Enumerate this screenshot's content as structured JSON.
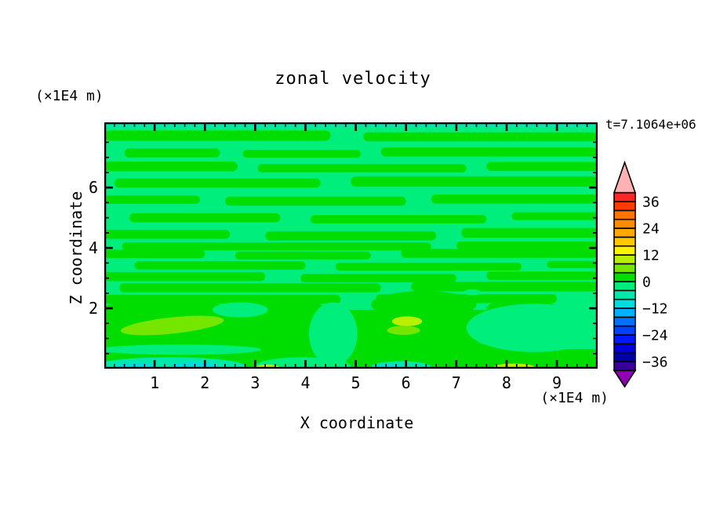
{
  "chart_data": {
    "type": "heatmap",
    "subtype": "filled-contour",
    "title": "zonal velocity",
    "annotation": "t=7.1064e+06",
    "xlabel": "X coordinate",
    "ylabel": "Z coordinate",
    "x_unit": "(×1E4 m)",
    "y_unit": "(×1E4 m)",
    "xlim": [
      0,
      9.81
    ],
    "ylim": [
      0,
      8.16
    ],
    "grid": false,
    "x_major_ticks": [
      {
        "v": 1,
        "label": "1"
      },
      {
        "v": 2,
        "label": "2"
      },
      {
        "v": 3,
        "label": "3"
      },
      {
        "v": 4,
        "label": "4"
      },
      {
        "v": 5,
        "label": "5"
      },
      {
        "v": 6,
        "label": "6"
      },
      {
        "v": 7,
        "label": "7"
      },
      {
        "v": 8,
        "label": "8"
      },
      {
        "v": 9,
        "label": "9"
      }
    ],
    "x_minor_step": 0.2,
    "y_major_ticks": [
      {
        "v": 2,
        "label": "2"
      },
      {
        "v": 4,
        "label": "4"
      },
      {
        "v": 6,
        "label": "6"
      }
    ],
    "y_minor_step": 0.5,
    "colorbar": {
      "contour_interval": 4,
      "levels": [
        -40,
        -36,
        -32,
        -28,
        -24,
        -20,
        -16,
        -12,
        -8,
        -4,
        0,
        4,
        8,
        12,
        16,
        20,
        24,
        28,
        32,
        36,
        40
      ],
      "colors_bottom_to_top": [
        "#3A0099",
        "#0000A8",
        "#0000DC",
        "#0018FF",
        "#0040FF",
        "#0070FF",
        "#00AFFF",
        "#00DDE0",
        "#00E8AC",
        "#00EF7C",
        "#00DD00",
        "#74E600",
        "#B8F000",
        "#FFF200",
        "#FFC800",
        "#FFA800",
        "#FF8C00",
        "#FF7300",
        "#FF3B00",
        "#FF2626"
      ],
      "under_color": "#8F00B0",
      "over_color": "#FFB2B2",
      "labeled_levels": [
        {
          "v": 36,
          "label": "36"
        },
        {
          "v": 24,
          "label": "24"
        },
        {
          "v": 12,
          "label": "12"
        },
        {
          "v": 0,
          "label": "0"
        },
        {
          "v": -12,
          "label": "−12"
        },
        {
          "v": -24,
          "label": "−24"
        },
        {
          "v": -36,
          "label": "−36"
        }
      ]
    },
    "field_description": "Horizontally banded zonal velocity field: background mostly in the -4..0 band (spring green) with elongated 0..4 streaks (green); near-bottom jet region with 4..12 cores (yellow-green) and -8..-12 patches (teal/turquoise) along the bottom edge and a thin teal strip along the top edge.",
    "field": {
      "palette": {
        "spring": "#00EF7C",
        "green": "#00DD00",
        "lawn": "#74E600",
        "chartreuse": "#B8F000",
        "teal": "#00E8AC",
        "turquoise": "#00DDE0"
      },
      "background": "spring",
      "shapes": [
        {
          "kind": "rect",
          "fill": "teal",
          "x": 0,
          "y": 8.16,
          "w": 9.81,
          "h": 0.17
        },
        {
          "kind": "band",
          "fill": "green",
          "x1": 0,
          "x2": 4.5,
          "y": 7.72,
          "h": 0.34
        },
        {
          "kind": "band",
          "fill": "green",
          "x1": 5.15,
          "x2": 9.81,
          "y": 7.68,
          "h": 0.3
        },
        {
          "kind": "band",
          "fill": "green",
          "x1": 0.4,
          "x2": 2.3,
          "y": 7.15,
          "h": 0.3
        },
        {
          "kind": "band",
          "fill": "green",
          "x1": 2.75,
          "x2": 5.1,
          "y": 7.12,
          "h": 0.26
        },
        {
          "kind": "band",
          "fill": "green",
          "x1": 5.5,
          "x2": 9.81,
          "y": 7.18,
          "h": 0.3
        },
        {
          "kind": "band",
          "fill": "green",
          "x1": 0,
          "x2": 2.65,
          "y": 6.7,
          "h": 0.32
        },
        {
          "kind": "band",
          "fill": "green",
          "x1": 3.05,
          "x2": 7.2,
          "y": 6.64,
          "h": 0.28
        },
        {
          "kind": "band",
          "fill": "green",
          "x1": 7.6,
          "x2": 9.81,
          "y": 6.7,
          "h": 0.3
        },
        {
          "kind": "band",
          "fill": "green",
          "x1": 0.2,
          "x2": 4.3,
          "y": 6.15,
          "h": 0.3
        },
        {
          "kind": "band",
          "fill": "green",
          "x1": 4.9,
          "x2": 9.81,
          "y": 6.2,
          "h": 0.34
        },
        {
          "kind": "band",
          "fill": "green",
          "x1": 0,
          "x2": 1.9,
          "y": 5.6,
          "h": 0.28
        },
        {
          "kind": "band",
          "fill": "green",
          "x1": 2.4,
          "x2": 6.0,
          "y": 5.55,
          "h": 0.3
        },
        {
          "kind": "band",
          "fill": "green",
          "x1": 6.5,
          "x2": 9.81,
          "y": 5.62,
          "h": 0.3
        },
        {
          "kind": "band",
          "fill": "green",
          "x1": 0.5,
          "x2": 3.5,
          "y": 5.0,
          "h": 0.3
        },
        {
          "kind": "band",
          "fill": "green",
          "x1": 4.1,
          "x2": 7.6,
          "y": 4.95,
          "h": 0.28
        },
        {
          "kind": "band",
          "fill": "green",
          "x1": 8.1,
          "x2": 9.81,
          "y": 5.05,
          "h": 0.26
        },
        {
          "kind": "band",
          "fill": "green",
          "x1": 0,
          "x2": 2.5,
          "y": 4.45,
          "h": 0.3
        },
        {
          "kind": "band",
          "fill": "green",
          "x1": 3.2,
          "x2": 6.6,
          "y": 4.4,
          "h": 0.3
        },
        {
          "kind": "band",
          "fill": "green",
          "x1": 7.1,
          "x2": 9.81,
          "y": 4.5,
          "h": 0.32
        },
        {
          "kind": "band",
          "fill": "green",
          "x1": 0.35,
          "x2": 6.5,
          "y": 4.05,
          "h": 0.26
        },
        {
          "kind": "band",
          "fill": "green",
          "x1": 7.0,
          "x2": 9.81,
          "y": 4.08,
          "h": 0.26
        },
        {
          "kind": "band",
          "fill": "green",
          "x1": 0,
          "x2": 2.0,
          "y": 3.8,
          "h": 0.28
        },
        {
          "kind": "band",
          "fill": "green",
          "x1": 2.6,
          "x2": 5.3,
          "y": 3.75,
          "h": 0.26
        },
        {
          "kind": "band",
          "fill": "green",
          "x1": 5.9,
          "x2": 9.81,
          "y": 3.82,
          "h": 0.3
        },
        {
          "kind": "band",
          "fill": "green",
          "x1": 0.6,
          "x2": 4.0,
          "y": 3.42,
          "h": 0.28
        },
        {
          "kind": "band",
          "fill": "green",
          "x1": 4.6,
          "x2": 8.3,
          "y": 3.38,
          "h": 0.26
        },
        {
          "kind": "band",
          "fill": "green",
          "x1": 8.8,
          "x2": 9.81,
          "y": 3.45,
          "h": 0.24
        },
        {
          "kind": "band",
          "fill": "green",
          "x1": 0,
          "x2": 3.2,
          "y": 3.05,
          "h": 0.3
        },
        {
          "kind": "band",
          "fill": "green",
          "x1": 3.9,
          "x2": 7.0,
          "y": 3.0,
          "h": 0.28
        },
        {
          "kind": "band",
          "fill": "green",
          "x1": 7.6,
          "x2": 9.81,
          "y": 3.08,
          "h": 0.28
        },
        {
          "kind": "band",
          "fill": "green",
          "x1": 0.3,
          "x2": 5.5,
          "y": 2.68,
          "h": 0.3
        },
        {
          "kind": "band",
          "fill": "green",
          "x1": 6.1,
          "x2": 9.81,
          "y": 2.72,
          "h": 0.32
        },
        {
          "kind": "band",
          "fill": "green",
          "x1": 0,
          "x2": 4.7,
          "y": 2.3,
          "h": 0.3
        },
        {
          "kind": "band",
          "fill": "green",
          "x1": 5.4,
          "x2": 9.0,
          "y": 2.32,
          "h": 0.3
        },
        {
          "kind": "rect",
          "fill": "green",
          "x": 0,
          "y": 1.95,
          "w": 9.81,
          "h": 1.95
        },
        {
          "kind": "ellipse",
          "fill": "green",
          "cx": 1.2,
          "cy": 1.98,
          "rx": 1.2,
          "ry": 0.35
        },
        {
          "kind": "ellipse",
          "fill": "green",
          "cx": 3.55,
          "cy": 2.02,
          "rx": 0.8,
          "ry": 0.32
        },
        {
          "kind": "ellipse",
          "fill": "green",
          "cx": 6.35,
          "cy": 2.12,
          "rx": 1.05,
          "ry": 0.45
        },
        {
          "kind": "ellipse",
          "fill": "green",
          "cx": 8.3,
          "cy": 2.0,
          "rx": 0.7,
          "ry": 0.3
        },
        {
          "kind": "ellipse",
          "fill": "spring",
          "cx": 1.5,
          "cy": 0.63,
          "rx": 1.62,
          "ry": 0.17
        },
        {
          "kind": "ellipse",
          "fill": "spring",
          "cx": 4.55,
          "cy": 1.15,
          "rx": 0.48,
          "ry": 1.05
        },
        {
          "kind": "ellipse",
          "fill": "spring",
          "cx": 2.7,
          "cy": 1.95,
          "rx": 0.55,
          "ry": 0.25
        },
        {
          "kind": "ellipse",
          "fill": "spring",
          "cx": 8.55,
          "cy": 1.35,
          "rx": 1.35,
          "ry": 0.8
        },
        {
          "kind": "rect",
          "fill": "spring",
          "x": 8.2,
          "y": 1.95,
          "w": 1.61,
          "h": 1.3
        },
        {
          "kind": "ellipse",
          "fill": "spring",
          "cx": 3.95,
          "cy": 0.08,
          "rx": 0.95,
          "ry": 0.3
        },
        {
          "kind": "ellipse",
          "fill": "spring",
          "cx": 7.58,
          "cy": 0.91,
          "rx": 0.14,
          "ry": 0.1
        },
        {
          "kind": "ellipse",
          "fill": "spring",
          "cx": 7.32,
          "cy": 2.53,
          "rx": 0.17,
          "ry": 0.1
        },
        {
          "kind": "ellipse",
          "fill": "teal",
          "cx": 1.3,
          "cy": 0.08,
          "rx": 1.5,
          "ry": 0.3
        },
        {
          "kind": "ellipse",
          "fill": "turquoise",
          "cx": 0.62,
          "cy": 0.05,
          "rx": 0.42,
          "ry": 0.14
        },
        {
          "kind": "ellipse",
          "fill": "turquoise",
          "cx": 1.8,
          "cy": 0.06,
          "rx": 0.48,
          "ry": 0.15
        },
        {
          "kind": "ellipse",
          "fill": "teal",
          "cx": 5.9,
          "cy": 0.05,
          "rx": 0.6,
          "ry": 0.2
        },
        {
          "kind": "ellipse",
          "fill": "turquoise",
          "cx": 5.68,
          "cy": 0.04,
          "rx": 0.27,
          "ry": 0.11
        },
        {
          "kind": "ellipse",
          "fill": "lawn",
          "cx": 1.35,
          "cy": 1.43,
          "rx": 1.03,
          "ry": 0.27,
          "rot": -6
        },
        {
          "kind": "ellipse",
          "fill": "chartreuse",
          "cx": 6.02,
          "cy": 1.57,
          "rx": 0.3,
          "ry": 0.16
        },
        {
          "kind": "ellipse",
          "fill": "lawn",
          "cx": 5.95,
          "cy": 1.27,
          "rx": 0.33,
          "ry": 0.15
        },
        {
          "kind": "ellipse",
          "fill": "chartreuse",
          "cx": 3.25,
          "cy": 0.04,
          "rx": 0.24,
          "ry": 0.1
        },
        {
          "kind": "ellipse",
          "fill": "chartreuse",
          "cx": 8.15,
          "cy": 0.06,
          "rx": 0.4,
          "ry": 0.11
        }
      ]
    }
  }
}
